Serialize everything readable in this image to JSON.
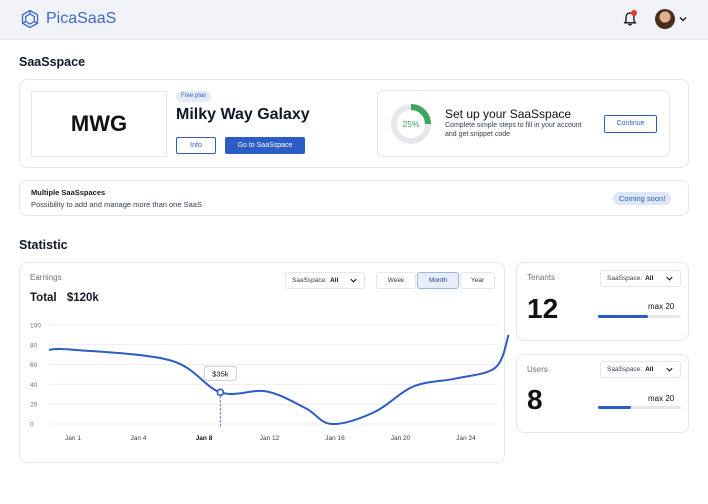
{
  "header": {
    "brand": "PicaSaaS",
    "icons": [
      "logo-icon",
      "bell-icon",
      "avatar",
      "chevron-down-icon"
    ],
    "accent": "#3f66c8"
  },
  "saasspace": {
    "section_title": "SaaSspace",
    "logo_initials": "MWG",
    "plan_badge": "Free plan",
    "name": "Milky Way Galaxy",
    "info_button": "Info",
    "go_button": "Go to SaaSspace",
    "setup": {
      "progress_label": "25%",
      "progress": 0.25,
      "title": "Set up your SaaSspace",
      "description": "Complete simple steps to fill in your account and get snippet code",
      "continue_button": "Continue"
    },
    "multiple": {
      "title": "Multiple SaaSspaces",
      "description": "Possibility to add and manage more than one SaaS",
      "badge": "Coming soon!"
    }
  },
  "statistic": {
    "section_title": "Statistic",
    "earnings": {
      "label": "Earnings",
      "total_label": "Total",
      "total_value": "$120k",
      "filter_label": "SaaSspace:",
      "filter_value": "All",
      "periods": [
        "Week",
        "Month",
        "Year"
      ],
      "active_period": "Month",
      "tooltip": "$35k"
    },
    "tenants": {
      "label": "Tenants",
      "filter_label": "SaaSspace:",
      "filter_value": "All",
      "value": "12",
      "max_label": "max 20",
      "fraction": 0.6
    },
    "users": {
      "label": "Users",
      "filter_label": "SaaSspace:",
      "filter_value": "All",
      "value": "8",
      "max_label": "max 20",
      "fraction": 0.4
    }
  },
  "chart_data": {
    "type": "line",
    "x": [
      "Jan 1",
      "Jan 4",
      "Jan 8",
      "Jan 12",
      "Jan 16",
      "Jan 20",
      "Jan 24"
    ],
    "y_ticks": [
      100,
      80,
      60,
      40,
      20,
      0
    ],
    "ylim": [
      0,
      100
    ],
    "highlight_label": "Jan 8",
    "points": [
      {
        "x": 0,
        "y": 75
      },
      {
        "x": 1.5,
        "y": 64
      },
      {
        "x": 2.25,
        "y": 32
      },
      {
        "x": 2.95,
        "y": 33
      },
      {
        "x": 3.55,
        "y": 16
      },
      {
        "x": 3.95,
        "y": 0
      },
      {
        "x": 4.6,
        "y": 12
      },
      {
        "x": 5.2,
        "y": 38
      },
      {
        "x": 5.85,
        "y": 46
      },
      {
        "x": 6.45,
        "y": 57
      },
      {
        "x": 6.65,
        "y": 90
      }
    ],
    "highlight_point": {
      "x": 2.25,
      "y": 32
    },
    "line_color": "#2c5cc5"
  }
}
